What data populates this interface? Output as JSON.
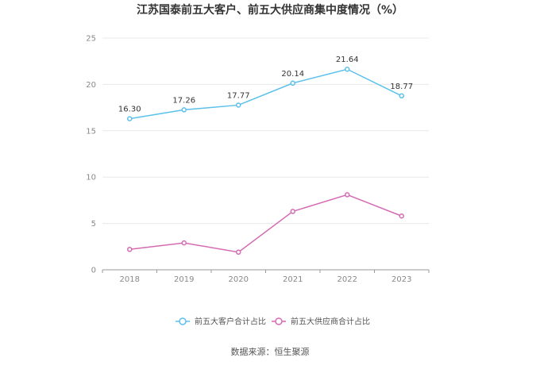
{
  "chart_data": {
    "type": "line",
    "title": "江苏国泰前五大客户、前五大供应商集中度情况（%）",
    "x": [
      "2018",
      "2019",
      "2020",
      "2021",
      "2022",
      "2023"
    ],
    "ylim": [
      0,
      25
    ],
    "yticks": [
      "0",
      "5",
      "10",
      "15",
      "20",
      "25"
    ],
    "grid": true,
    "legend_position": "bottom",
    "series": [
      {
        "name": "前五大客户合计占比",
        "color": "#5bc0eb",
        "values": [
          16.3,
          17.26,
          17.77,
          20.14,
          21.64,
          18.77
        ],
        "labels": [
          "16.30",
          "17.26",
          "17.77",
          "20.14",
          "21.64",
          "18.77"
        ]
      },
      {
        "name": "前五大供应商合计占比",
        "color": "#d46bb2",
        "values": [
          2.2,
          2.9,
          1.9,
          6.3,
          8.1,
          5.8
        ],
        "labels": []
      }
    ],
    "source": "数据来源：恒生聚源"
  }
}
